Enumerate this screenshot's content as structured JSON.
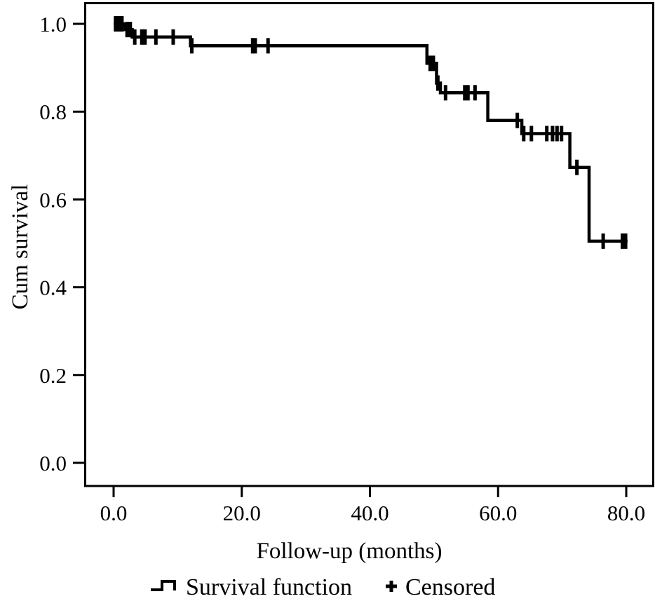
{
  "figure": {
    "background_color": "#ffffff",
    "line_color": "#000000"
  },
  "chart_data": {
    "type": "line",
    "subtype": "kaplan-meier-step-function",
    "title": "",
    "xlabel": "Follow-up (months)",
    "ylabel": "Cum survival",
    "xlim": [
      -4.3,
      84.3
    ],
    "ylim": [
      -0.05,
      1.05
    ],
    "grid": false,
    "xticks": {
      "values": [
        0,
        20,
        40,
        60,
        80
      ],
      "labels": [
        "0.0",
        "20.0",
        "40.0",
        "60.0",
        "80.0"
      ]
    },
    "yticks": {
      "values": [
        0.0,
        0.2,
        0.4,
        0.6,
        0.8,
        1.0
      ],
      "labels": [
        "0.0",
        "0.2",
        "0.4",
        "0.6",
        "0.8",
        "1.0"
      ]
    },
    "series": [
      {
        "name": "Survival function",
        "style": "step-post",
        "points": [
          [
            0.0,
            1.0
          ],
          [
            1.8,
            0.987
          ],
          [
            2.9,
            0.97
          ],
          [
            12.0,
            0.95
          ],
          [
            48.9,
            0.91
          ],
          [
            50.4,
            0.865
          ],
          [
            51.0,
            0.843
          ],
          [
            58.4,
            0.78
          ],
          [
            63.7,
            0.75
          ],
          [
            71.2,
            0.673
          ],
          [
            74.2,
            0.505
          ],
          [
            80.2,
            0.505
          ]
        ]
      }
    ],
    "censored": {
      "name": "Censored",
      "marker": "plus-tick",
      "points": [
        [
          0.3,
          1.0
        ],
        [
          0.8,
          1.0
        ],
        [
          1.3,
          1.0
        ],
        [
          2.1,
          0.987
        ],
        [
          2.6,
          0.987
        ],
        [
          3.3,
          0.97
        ],
        [
          4.4,
          0.97
        ],
        [
          4.9,
          0.97
        ],
        [
          6.6,
          0.97
        ],
        [
          9.3,
          0.97
        ],
        [
          12.2,
          0.95
        ],
        [
          21.7,
          0.95
        ],
        [
          22.1,
          0.95
        ],
        [
          24.1,
          0.95
        ],
        [
          49.4,
          0.91
        ],
        [
          49.9,
          0.91
        ],
        [
          50.6,
          0.865
        ],
        [
          51.8,
          0.843
        ],
        [
          54.8,
          0.843
        ],
        [
          55.3,
          0.843
        ],
        [
          56.4,
          0.843
        ],
        [
          63.0,
          0.78
        ],
        [
          64.0,
          0.75
        ],
        [
          65.2,
          0.75
        ],
        [
          67.6,
          0.75
        ],
        [
          68.5,
          0.75
        ],
        [
          69.2,
          0.75
        ],
        [
          69.9,
          0.75
        ],
        [
          72.3,
          0.673
        ],
        [
          76.4,
          0.505
        ],
        [
          79.4,
          0.505
        ],
        [
          79.9,
          0.505
        ]
      ]
    },
    "legend": {
      "position": "bottom",
      "entries": [
        {
          "label": "Survival function",
          "glyph": "step-line"
        },
        {
          "label": "Censored",
          "glyph": "plus"
        }
      ]
    }
  }
}
